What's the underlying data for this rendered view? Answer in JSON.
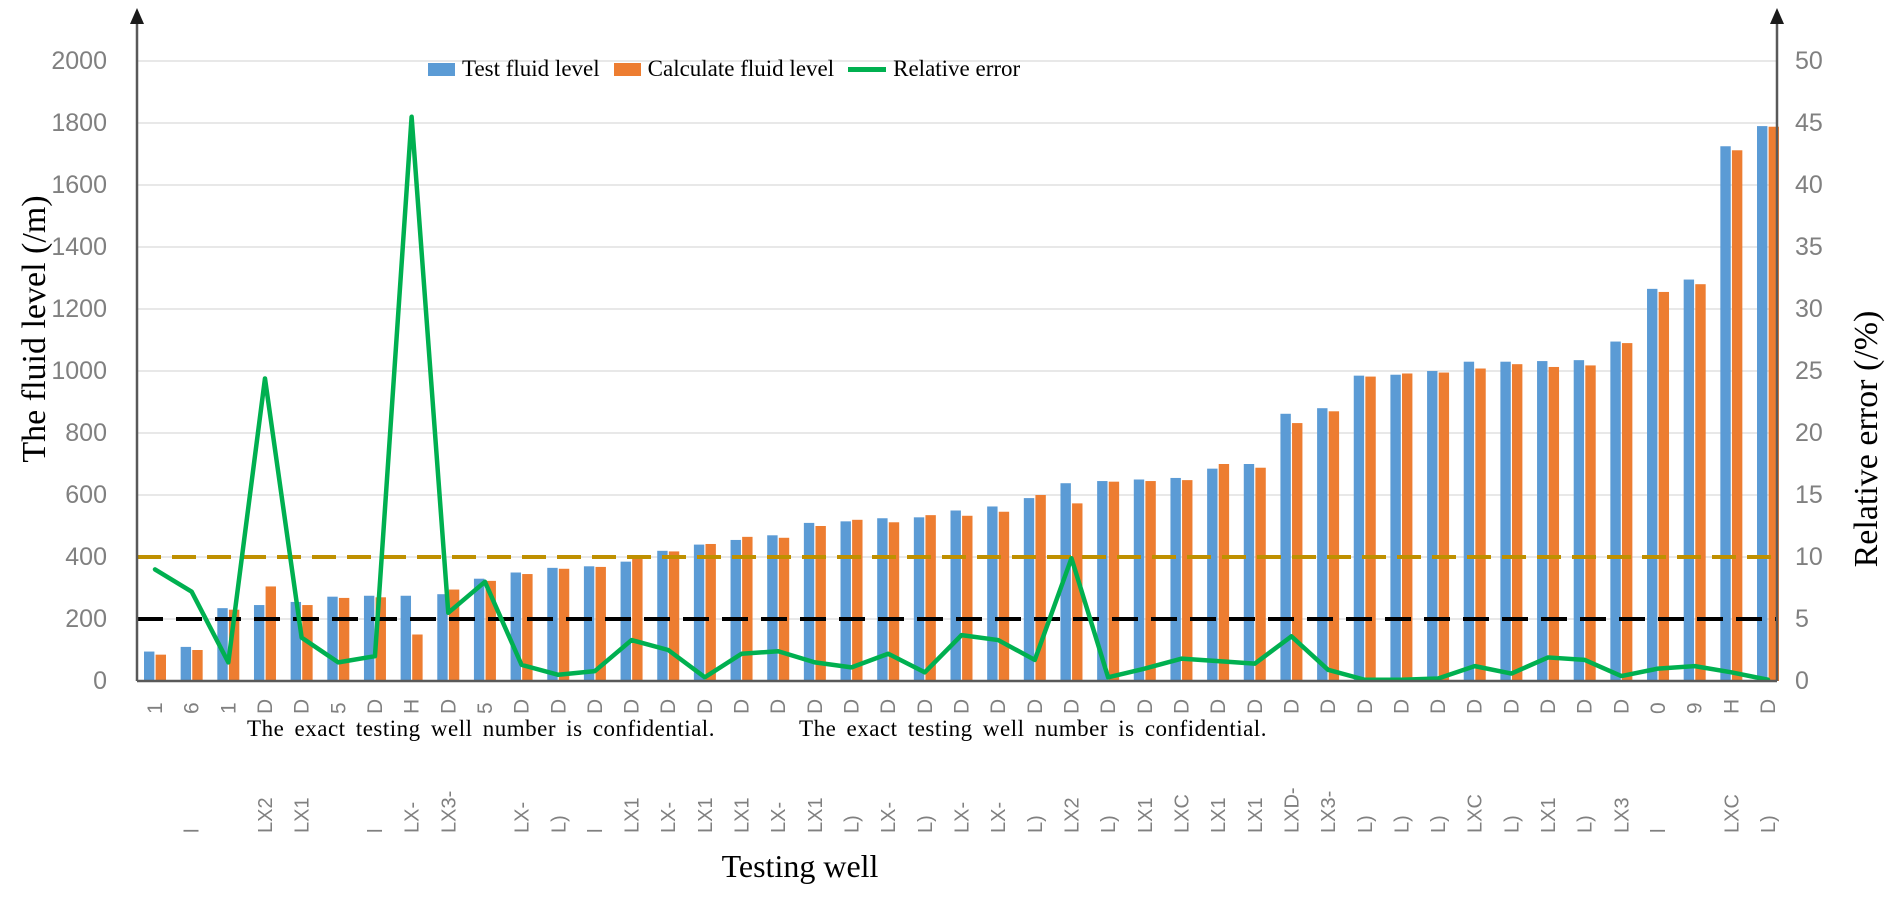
{
  "colors": {
    "test_bar": "#5B9BD5",
    "calc_bar": "#ED7D31",
    "error_line": "#00B050",
    "ref_line_10": "#BF9000",
    "ref_line_5": "#000000",
    "gridline": "#D9D9D9",
    "axis": "#595959",
    "tick_text": "#808080"
  },
  "legend": {
    "items": [
      {
        "label": "Test fluid level",
        "color": "#5B9BD5",
        "type": "bar"
      },
      {
        "label": "Calculate fluid level",
        "color": "#ED7D31",
        "type": "bar"
      },
      {
        "label": "Relative error",
        "color": "#00B050",
        "type": "line"
      }
    ]
  },
  "left_axis": {
    "title": "The fluid level (/m)",
    "ticks": [
      0,
      200,
      400,
      600,
      800,
      1000,
      1200,
      1400,
      1600,
      1800,
      2000
    ],
    "range": [
      0,
      2000
    ]
  },
  "right_axis": {
    "title": "Relative error (/%)",
    "ticks": [
      0,
      5,
      10,
      15,
      20,
      25,
      30,
      35,
      40,
      45,
      50
    ],
    "range": [
      0,
      50
    ]
  },
  "x_axis": {
    "title": "Testing well",
    "note": "The exact testing well number is confidential."
  },
  "chart_data": {
    "type": "bar+line",
    "title": "",
    "xlabel": "Testing well",
    "ylabel_left": "The fluid level (/m)",
    "ylabel_right": "Relative error (/%)",
    "ylim_left": [
      0,
      2000
    ],
    "ylim_right": [
      0,
      50
    ],
    "grid": true,
    "legend_position": "top",
    "reference_lines": [
      {
        "axis": "right",
        "value": 10,
        "style": "dashed",
        "color": "#BF9000"
      },
      {
        "axis": "right",
        "value": 5,
        "style": "dashed",
        "color": "#000000"
      }
    ],
    "categories": [
      "1",
      "6",
      "1",
      "D",
      "D",
      "5",
      "D",
      "H",
      "D",
      "5",
      "D",
      "D",
      "D",
      "D",
      "D",
      "D",
      "D",
      "D",
      "D",
      "D",
      "D",
      "D",
      "D",
      "D",
      "D",
      "D",
      "D",
      "D",
      "D",
      "D",
      "D",
      "D",
      "D",
      "D",
      "D",
      "D",
      "D",
      "D",
      "D",
      "D",
      "D",
      "0",
      "9",
      "H",
      "D"
    ],
    "well_name_fragments": [
      "",
      "l",
      "",
      "LX2",
      "LX1",
      "",
      "l",
      "LX-",
      "LX3-",
      "",
      "LX-",
      "L)",
      "l",
      "LX1",
      "LX-",
      "LX1",
      "LX1",
      "LX-",
      "LX1",
      "L)",
      "LX-",
      "L)",
      "LX-",
      "LX-",
      "L)",
      "LX2",
      "L)",
      "LX1",
      "LXC",
      "LX1",
      "LX1",
      "LXD-",
      "LX3-",
      "L)",
      "L)",
      "L)",
      "LXC",
      "L)",
      "LX1",
      "L)",
      "LX3",
      "l",
      "",
      "LXC",
      "L)"
    ],
    "series": [
      {
        "name": "Test fluid level",
        "axis": "left",
        "type": "bar",
        "values": [
          95,
          110,
          235,
          245,
          255,
          272,
          275,
          275,
          280,
          330,
          350,
          365,
          370,
          385,
          420,
          440,
          455,
          470,
          510,
          515,
          525,
          528,
          550,
          563,
          590,
          638,
          645,
          650,
          655,
          685,
          700,
          862,
          880,
          985,
          988,
          1000,
          1030,
          1030,
          1032,
          1035,
          1095,
          1265,
          1295,
          1725,
          1790
        ]
      },
      {
        "name": "Calculate fluid level",
        "axis": "left",
        "type": "bar",
        "values": [
          85,
          100,
          230,
          305,
          245,
          268,
          270,
          150,
          295,
          323,
          345,
          362,
          368,
          398,
          418,
          442,
          465,
          462,
          500,
          520,
          512,
          535,
          533,
          546,
          600,
          573,
          643,
          645,
          648,
          700,
          688,
          832,
          870,
          982,
          992,
          995,
          1008,
          1022,
          1013,
          1018,
          1090,
          1255,
          1280,
          1712,
          1788
        ]
      },
      {
        "name": "Relative error",
        "axis": "right",
        "type": "line",
        "values": [
          9.0,
          7.2,
          1.5,
          24.4,
          3.5,
          1.5,
          2.0,
          45.5,
          5.5,
          8.0,
          1.3,
          0.5,
          0.8,
          3.3,
          2.5,
          0.3,
          2.2,
          2.4,
          1.5,
          1.1,
          2.2,
          0.7,
          3.7,
          3.3,
          1.7,
          9.9,
          0.3,
          1.0,
          1.8,
          1.6,
          1.4,
          3.6,
          0.9,
          0.1,
          0.1,
          0.2,
          1.2,
          0.6,
          1.9,
          1.7,
          0.4,
          1.0,
          1.2,
          0.7,
          0.1
        ]
      }
    ]
  }
}
